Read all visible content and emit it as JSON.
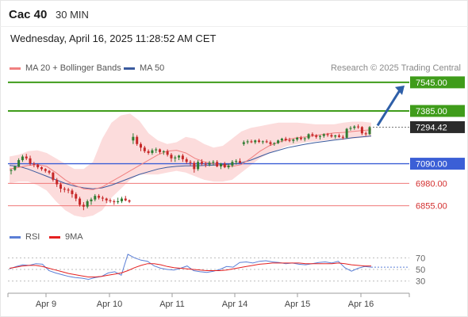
{
  "header": {
    "instrument": "Cac 40",
    "timeframe": "30 MIN",
    "datetime": "Wednesday, April 16, 2025 11:28:52 AM CET",
    "credit": "Research © 2025 Trading Central"
  },
  "colors": {
    "green_level": "#3f9c1a",
    "blue_level": "#3b5fd6",
    "red_level": "#f07878",
    "price_tag": "#2b2b2b",
    "candle_up": "#2e7d32",
    "candle_down": "#c62828",
    "bollinger_fill": "#fbd6d6",
    "ma20": "#f08080",
    "ma50": "#3a5a9e",
    "rsi": "#5b7fd6",
    "rsi_ma": "#e52020",
    "arrow": "#2e5fa8"
  },
  "chart_data": [
    {
      "type": "line",
      "title": "Cac 40",
      "xlabel": "",
      "ylabel": "",
      "x_ticks": [
        "Apr 9",
        "Apr 10",
        "Apr 11",
        "Apr 14",
        "Apr 15",
        "Apr 16"
      ],
      "ylim": [
        6800,
        7580
      ],
      "legend": [
        {
          "label": "MA 20 + Bollinger Bands",
          "color": "#f08080"
        },
        {
          "label": "MA 50",
          "color": "#3a5a9e"
        }
      ],
      "levels": [
        {
          "label": "7545.00",
          "value": 7545,
          "kind": "resistance",
          "color": "#3f9c1a"
        },
        {
          "label": "7385.00",
          "value": 7385,
          "kind": "resistance",
          "color": "#3f9c1a"
        },
        {
          "label": "7294.42",
          "value": 7294.42,
          "kind": "last",
          "color": "#2b2b2b"
        },
        {
          "label": "7090.00",
          "value": 7090,
          "kind": "pivot",
          "color": "#3b5fd6"
        },
        {
          "label": "6980.00",
          "value": 6980,
          "kind": "support",
          "color": "#f07878"
        },
        {
          "label": "6855.00",
          "value": 6855,
          "kind": "support",
          "color": "#f07878"
        }
      ],
      "candles": [
        [
          7050,
          7060,
          7030,
          7055
        ],
        [
          7055,
          7080,
          7050,
          7075
        ],
        [
          7075,
          7120,
          7070,
          7110
        ],
        [
          7110,
          7140,
          7100,
          7130
        ],
        [
          7130,
          7145,
          7110,
          7120
        ],
        [
          7120,
          7135,
          7080,
          7090
        ],
        [
          7090,
          7100,
          7070,
          7085
        ],
        [
          7085,
          7090,
          7060,
          7070
        ],
        [
          7070,
          7075,
          7050,
          7060
        ],
        [
          7060,
          7065,
          7040,
          7050
        ],
        [
          7050,
          7055,
          7030,
          7040
        ],
        [
          7040,
          7045,
          6990,
          7000
        ],
        [
          7000,
          7010,
          6960,
          6975
        ],
        [
          6975,
          6985,
          6930,
          6950
        ],
        [
          6950,
          6960,
          6930,
          6945
        ],
        [
          6945,
          6955,
          6925,
          6940
        ],
        [
          6940,
          6950,
          6900,
          6920
        ],
        [
          6920,
          6930,
          6880,
          6895
        ],
        [
          6895,
          6905,
          6850,
          6860
        ],
        [
          6860,
          6875,
          6830,
          6850
        ],
        [
          6850,
          6890,
          6840,
          6880
        ],
        [
          6880,
          6900,
          6860,
          6890
        ],
        [
          6890,
          6920,
          6880,
          6910
        ],
        [
          6910,
          6920,
          6890,
          6900
        ],
        [
          6900,
          6910,
          6880,
          6895
        ],
        [
          6895,
          6900,
          6870,
          6885
        ],
        [
          6885,
          6895,
          6870,
          6880
        ],
        [
          6880,
          6890,
          6860,
          6875
        ],
        [
          6875,
          6900,
          6865,
          6880
        ],
        [
          6880,
          6905,
          6870,
          6895
        ],
        [
          6895,
          6910,
          6880,
          6885
        ],
        [
          6885,
          6890,
          6870,
          6878
        ],
        [
          7220,
          7260,
          7200,
          7240
        ],
        [
          7240,
          7250,
          7190,
          7200
        ],
        [
          7200,
          7210,
          7160,
          7180
        ],
        [
          7180,
          7190,
          7150,
          7160
        ],
        [
          7160,
          7170,
          7140,
          7150
        ],
        [
          7150,
          7175,
          7140,
          7165
        ],
        [
          7165,
          7180,
          7150,
          7170
        ],
        [
          7170,
          7175,
          7145,
          7155
        ],
        [
          7155,
          7165,
          7140,
          7160
        ],
        [
          7160,
          7170,
          7130,
          7140
        ],
        [
          7140,
          7150,
          7100,
          7120
        ],
        [
          7120,
          7135,
          7100,
          7125
        ],
        [
          7125,
          7140,
          7110,
          7135
        ],
        [
          7135,
          7145,
          7100,
          7115
        ],
        [
          7115,
          7125,
          7090,
          7100
        ],
        [
          7100,
          7110,
          7080,
          7095
        ],
        [
          7095,
          7105,
          7040,
          7060
        ],
        [
          7060,
          7110,
          7050,
          7100
        ],
        [
          7100,
          7115,
          7080,
          7090
        ],
        [
          7090,
          7100,
          7070,
          7085
        ],
        [
          7085,
          7105,
          7075,
          7095
        ],
        [
          7095,
          7110,
          7080,
          7100
        ],
        [
          7100,
          7110,
          7070,
          7075
        ],
        [
          7075,
          7095,
          7060,
          7090
        ],
        [
          7090,
          7100,
          7065,
          7070
        ],
        [
          7070,
          7090,
          7060,
          7080
        ],
        [
          7080,
          7110,
          7070,
          7100
        ],
        [
          7100,
          7115,
          7085,
          7105
        ],
        [
          7105,
          7120,
          7090,
          7095
        ],
        [
          7200,
          7220,
          7190,
          7210
        ],
        [
          7210,
          7225,
          7200,
          7215
        ],
        [
          7215,
          7225,
          7205,
          7210
        ],
        [
          7210,
          7225,
          7200,
          7220
        ],
        [
          7220,
          7230,
          7205,
          7212
        ],
        [
          7212,
          7220,
          7200,
          7215
        ],
        [
          7215,
          7225,
          7205,
          7210
        ],
        [
          7210,
          7220,
          7190,
          7200
        ],
        [
          7200,
          7210,
          7190,
          7205
        ],
        [
          7205,
          7225,
          7200,
          7220
        ],
        [
          7220,
          7235,
          7210,
          7230
        ],
        [
          7230,
          7240,
          7215,
          7222
        ],
        [
          7222,
          7235,
          7210,
          7218
        ],
        [
          7218,
          7230,
          7205,
          7225
        ],
        [
          7225,
          7240,
          7215,
          7235
        ],
        [
          7235,
          7245,
          7220,
          7228
        ],
        [
          7228,
          7238,
          7215,
          7232
        ],
        [
          7232,
          7260,
          7225,
          7255
        ],
        [
          7255,
          7265,
          7240,
          7248
        ],
        [
          7248,
          7255,
          7230,
          7240
        ],
        [
          7240,
          7250,
          7225,
          7245
        ],
        [
          7245,
          7260,
          7235,
          7255
        ],
        [
          7255,
          7262,
          7240,
          7250
        ],
        [
          7250,
          7260,
          7235,
          7242
        ],
        [
          7242,
          7252,
          7230,
          7248
        ],
        [
          7248,
          7258,
          7235,
          7240
        ],
        [
          7240,
          7250,
          7225,
          7235
        ],
        [
          7235,
          7290,
          7230,
          7285
        ],
        [
          7285,
          7300,
          7275,
          7290
        ],
        [
          7290,
          7305,
          7280,
          7298
        ],
        [
          7298,
          7310,
          7285,
          7295
        ],
        [
          7295,
          7300,
          7250,
          7260
        ],
        [
          7260,
          7270,
          7245,
          7255
        ],
        [
          7255,
          7300,
          7250,
          7294.42
        ]
      ],
      "ma20": [
        7060,
        7070,
        7080,
        7085,
        7075,
        7040,
        7000,
        6970,
        6950,
        6945,
        6960,
        6990,
        7020,
        7050,
        7080,
        7110,
        7140,
        7160,
        7165,
        7150,
        7120,
        7100,
        7090,
        7080,
        7075,
        7085,
        7120,
        7160,
        7190,
        7210,
        7225,
        7235,
        7240,
        7248,
        7255,
        7262,
        7265,
        7270,
        7275,
        7280
      ],
      "ma50": [
        7080,
        7075,
        7060,
        7040,
        7020,
        7000,
        6980,
        6965,
        6955,
        6950,
        6955,
        6970,
        6990,
        7010,
        7030,
        7045,
        7060,
        7070,
        7075,
        7078,
        7078,
        7080,
        7082,
        7085,
        7088,
        7095,
        7110,
        7130,
        7150,
        7165,
        7180,
        7190,
        7200,
        7208,
        7215,
        7222,
        7228,
        7235,
        7240,
        7245
      ],
      "bb_upper": [
        7130,
        7140,
        7160,
        7165,
        7150,
        7120,
        7090,
        7060,
        7060,
        7100,
        7230,
        7320,
        7360,
        7370,
        7330,
        7260,
        7220,
        7200,
        7210,
        7240,
        7230,
        7200,
        7180,
        7190,
        7230,
        7270,
        7290,
        7300,
        7310,
        7320,
        7320,
        7320,
        7315,
        7310,
        7310,
        7310,
        7320,
        7325,
        7325,
        7320
      ],
      "bb_lower": [
        6980,
        6990,
        6990,
        6970,
        6940,
        6880,
        6830,
        6800,
        6790,
        6800,
        6830,
        6900,
        6950,
        7000,
        7030,
        7030,
        7030,
        7040,
        7050,
        7040,
        7020,
        7000,
        6990,
        6990,
        7000,
        7040,
        7080,
        7120,
        7150,
        7170,
        7190,
        7200,
        7210,
        7215,
        7220,
        7225,
        7225,
        7230,
        7235,
        7240
      ]
    },
    {
      "type": "line",
      "title": "",
      "xlabel": "",
      "ylabel": "",
      "ylim": [
        20,
        80
      ],
      "y_ticks": [
        "70",
        "50",
        "30"
      ],
      "legend": [
        {
          "label": "RSI",
          "color": "#5b7fd6"
        },
        {
          "label": "9MA",
          "color": "#e52020"
        }
      ],
      "series": [
        {
          "name": "RSI",
          "values": [
            51,
            55,
            58,
            57,
            60,
            59,
            48,
            44,
            41,
            38,
            36,
            35,
            33,
            36,
            38,
            44,
            46,
            40,
            76,
            70,
            66,
            64,
            56,
            52,
            50,
            49,
            52,
            56,
            48,
            46,
            45,
            47,
            50,
            55,
            54,
            62,
            63,
            61,
            64,
            65,
            63,
            62,
            60,
            61,
            59,
            58,
            60,
            62,
            63,
            61,
            64,
            53,
            47,
            52,
            55,
            54
          ]
        },
        {
          "name": "9MA",
          "values": [
            52,
            54,
            56,
            57,
            57,
            55,
            52,
            49,
            46,
            43,
            41,
            39,
            37,
            37,
            38,
            40,
            42,
            44,
            48,
            53,
            57,
            60,
            60,
            58,
            55,
            53,
            52,
            51,
            50,
            49,
            48,
            48,
            48,
            49,
            51,
            53,
            55,
            57,
            59,
            60,
            61,
            61,
            61,
            61,
            61,
            60,
            60,
            60,
            60,
            60,
            61,
            60,
            58,
            57,
            56,
            56
          ]
        }
      ]
    }
  ]
}
